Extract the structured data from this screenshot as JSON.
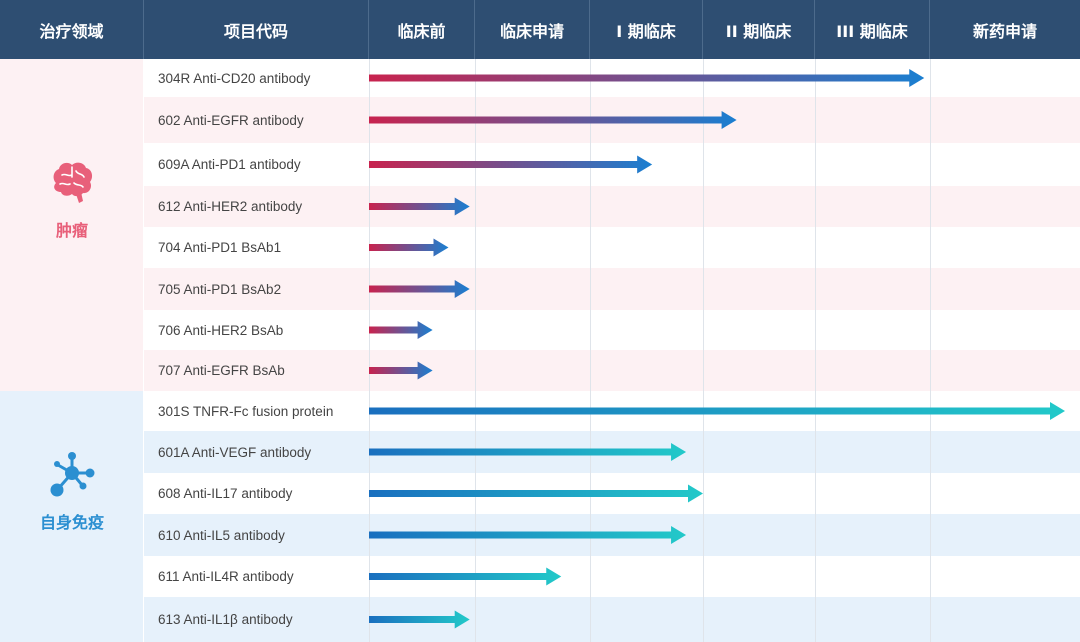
{
  "header": {
    "columns": [
      "治疗领域",
      "项目代码",
      "临床前",
      "临床申请",
      "I 期临床",
      "II 期临床",
      "III 期临床",
      "新药申请"
    ]
  },
  "categories": [
    {
      "name": "肿瘤",
      "icon": "brain-icon",
      "color": "#e8607a",
      "bg": "#fdf1f3"
    },
    {
      "name": "自身免疫",
      "icon": "molecule-icon",
      "color": "#2b8fd1",
      "bg": "#e6f1fb"
    }
  ],
  "chart_data": {
    "type": "bar",
    "stages": [
      "临床前",
      "临床申请",
      "I 期临床",
      "II 期临床",
      "III 期临床",
      "新药申请"
    ],
    "rows": [
      {
        "label": "304R  Anti-CD20 antibody",
        "category": "肿瘤",
        "progress": 4.95
      },
      {
        "label": "602  Anti-EGFR antibody",
        "category": "肿瘤",
        "progress": 3.3
      },
      {
        "label": "609A  Anti-PD1 antibody",
        "category": "肿瘤",
        "progress": 2.55
      },
      {
        "label": "612  Anti-HER2 antibody",
        "category": "肿瘤",
        "progress": 0.95
      },
      {
        "label": "704  Anti-PD1 BsAb1",
        "category": "肿瘤",
        "progress": 0.75
      },
      {
        "label": "705  Anti-PD1 BsAb2",
        "category": "肿瘤",
        "progress": 0.95
      },
      {
        "label": "706 Anti-HER2 BsAb",
        "category": "肿瘤",
        "progress": 0.6
      },
      {
        "label": "707  Anti-EGFR BsAb",
        "category": "肿瘤",
        "progress": 0.6
      },
      {
        "label": "301S TNFR-Fc fusion protein",
        "category": "自身免疫",
        "progress": 5.9
      },
      {
        "label": "601A  Anti-VEGF antibody",
        "category": "自身免疫",
        "progress": 2.85
      },
      {
        "label": "608  Anti-IL17 antibody",
        "category": "自身免疫",
        "progress": 3.0
      },
      {
        "label": "610  Anti-IL5 antibody",
        "category": "自身免疫",
        "progress": 2.85
      },
      {
        "label": "611  Anti-IL4R antibody",
        "category": "自身免疫",
        "progress": 1.75
      },
      {
        "label": "613  Anti-IL1β antibody",
        "category": "自身免疫",
        "progress": 0.95
      }
    ]
  },
  "colors": {
    "oncology_start": "#c8234e",
    "oncology_end": "#1a7fd1",
    "autoimmune_start": "#1a6fbf",
    "autoimmune_end": "#22c9c9"
  }
}
